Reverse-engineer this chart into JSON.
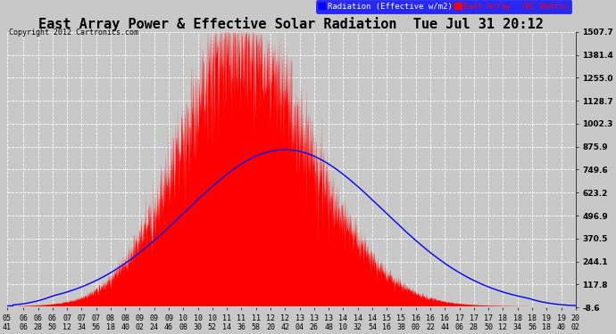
{
  "title": "East Array Power & Effective Solar Radiation  Tue Jul 31 20:12",
  "copyright": "Copyright 2012 Cartronics.com",
  "legend_radiation": "Radiation (Effective w/m2)",
  "legend_east": "East Array  (DC Watts)",
  "background_color": "#c8c8c8",
  "plot_bg_color": "#c8c8c8",
  "grid_color": "#ffffff",
  "y_min": -8.6,
  "y_max": 1507.7,
  "ytick_labels": [
    "1507.7",
    "1381.4",
    "1255.0",
    "1128.7",
    "1002.3",
    "875.9",
    "749.6",
    "623.2",
    "496.9",
    "370.5",
    "244.1",
    "117.8",
    "-8.6"
  ],
  "ytick_values": [
    1507.7,
    1381.4,
    1255.0,
    1128.7,
    1002.3,
    875.9,
    749.6,
    623.2,
    496.9,
    370.5,
    244.1,
    117.8,
    -8.6
  ],
  "xtick_labels": [
    "05:41",
    "06:06",
    "06:28",
    "06:50",
    "07:12",
    "07:34",
    "07:56",
    "08:18",
    "08:40",
    "09:02",
    "09:24",
    "09:46",
    "10:08",
    "10:30",
    "10:52",
    "11:14",
    "11:36",
    "11:58",
    "12:20",
    "12:42",
    "13:04",
    "13:26",
    "13:48",
    "14:10",
    "14:32",
    "14:54",
    "15:16",
    "15:38",
    "16:00",
    "16:22",
    "16:44",
    "17:06",
    "17:28",
    "17:50",
    "18:12",
    "18:34",
    "18:56",
    "19:18",
    "19:40",
    "20:02"
  ],
  "fill_color": "#ff0000",
  "line_color": "#0000ff",
  "title_fontsize": 11,
  "tick_fontsize": 6.0,
  "east_peak_time": "11:30",
  "east_rise_time": "06:28",
  "east_fall_time": "17:50",
  "east_peak_value": 1430,
  "east_rise_sigma": 90,
  "east_fall_sigma": 110,
  "rad_peak_time": "12:42",
  "rad_peak_value": 860,
  "rad_sigma": 150,
  "fig_width": 6.9,
  "fig_height": 3.75,
  "fig_dpi": 100
}
